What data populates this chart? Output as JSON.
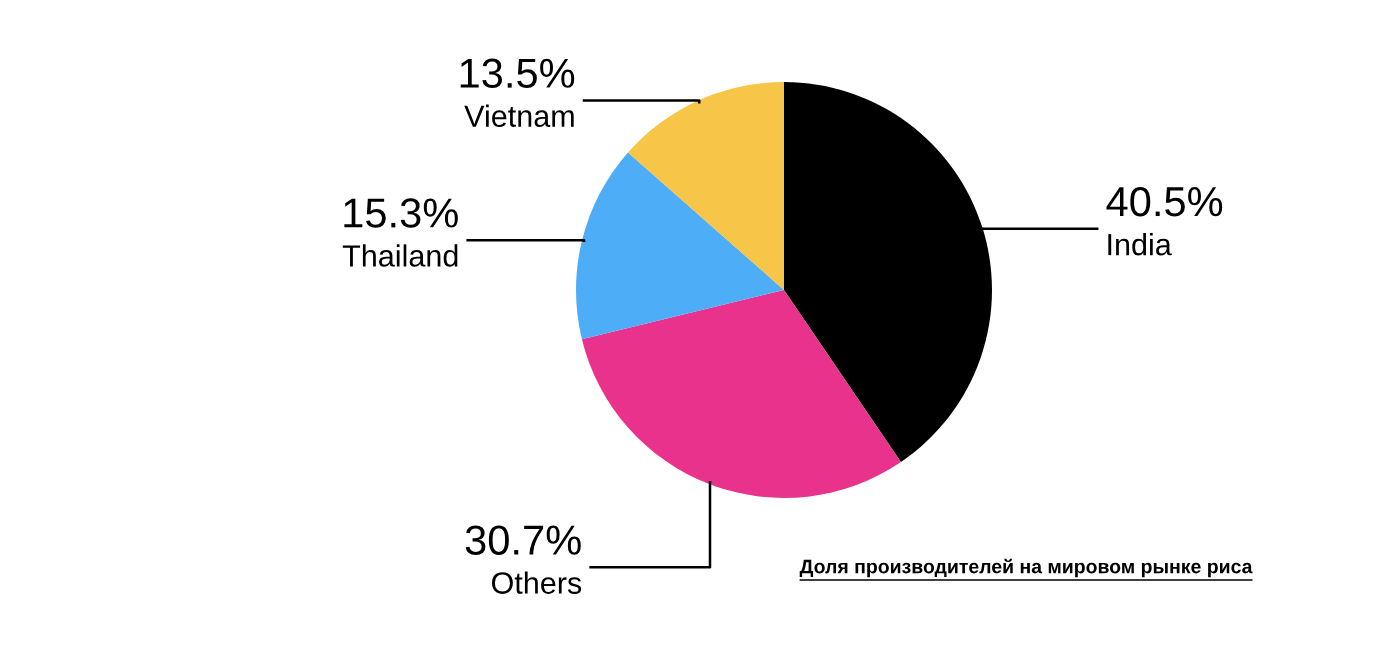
{
  "chart_data": {
    "type": "pie",
    "categories": [
      "India",
      "Others",
      "Thailand",
      "Vietnam"
    ],
    "values": [
      40.5,
      30.7,
      15.3,
      13.5
    ],
    "value_labels": [
      "40.5%",
      "30.7%",
      "15.3%",
      "13.5%"
    ],
    "colors": [
      "#000000",
      "#e8328c",
      "#4dadf7",
      "#f7c548"
    ],
    "annotations": [
      "Доля производителей на мировом рынке риса"
    ]
  }
}
